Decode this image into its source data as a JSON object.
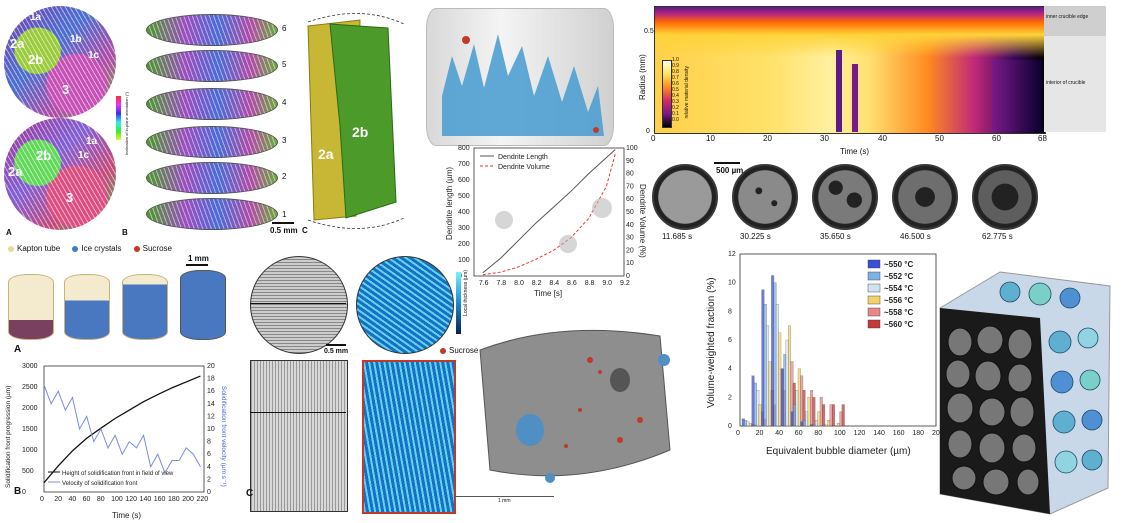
{
  "panel_ebsd": {
    "grain_labels_top": [
      "1a",
      "1b",
      "2a",
      "2b",
      "1c",
      "3"
    ],
    "grain_labels_bottom": [
      "1a",
      "1c",
      "2a",
      "2b",
      "3"
    ],
    "letter_a": "A",
    "letter_b": "B",
    "letter_c": "C",
    "colorbar_label": "Inclination of in-plane orientation (°)",
    "slice_numbers": [
      "6",
      "5",
      "4",
      "3",
      "2",
      "1"
    ],
    "render_labels": [
      "2a",
      "2b"
    ],
    "scalebar": "0.5 mm"
  },
  "panel_kapton": {
    "legend": [
      "Kapton tube",
      "Ice crystals",
      "Sucrose"
    ],
    "legend_colors": [
      "#e8d7a0",
      "#3f7fc4",
      "#c0392b"
    ],
    "scalebar": "1 mm",
    "letter_a": "A",
    "letter_b": "B"
  },
  "chart_solidification": {
    "ylabel_left": "Solidification front progression (µm)",
    "ylabel_right": "Solidification front velocity (µm s⁻¹)",
    "xlabel": "Time (s)",
    "legend": [
      "Height of solidification front in field of view",
      "Velocity of solidification front"
    ],
    "x_ticks": [
      "0",
      "20",
      "40",
      "60",
      "80",
      "100",
      "120",
      "140",
      "160",
      "180",
      "200",
      "220"
    ],
    "y_ticks_left": [
      "0",
      "500",
      "1000",
      "1500",
      "2000",
      "2500",
      "3000"
    ],
    "y_ticks_right": [
      "0",
      "2",
      "4",
      "6",
      "8",
      "10",
      "12",
      "14",
      "16",
      "18",
      "20"
    ]
  },
  "panel_thickness": {
    "colorbar_label": "Local thickness (µm)",
    "scalebar": "0.5 mm",
    "letter_c": "C",
    "sucrose_label": "Sucrose",
    "render_scalebar": "1 mm"
  },
  "chart_dendrite": {
    "ylabel_left": "Dendrite length (µm)",
    "ylabel_right": "Dendrite Volume (%)",
    "xlabel": "Time [s]",
    "legend": [
      "Dendrite Length",
      "Dendrite Volume"
    ],
    "x_ticks": [
      "7.6",
      "7.8",
      "8.0",
      "8.2",
      "8.4",
      "8.6",
      "8.8",
      "9.0",
      "9.2"
    ],
    "y_ticks_left": [
      "0",
      "100",
      "200",
      "300",
      "400",
      "500",
      "600",
      "700",
      "800"
    ],
    "y_ticks_right": [
      "0",
      "10",
      "20",
      "30",
      "40",
      "50",
      "60",
      "70",
      "80",
      "90",
      "100"
    ]
  },
  "chart_heatmap": {
    "ylabel": "Radius (mm)",
    "xlabel": "Time (s)",
    "x_ticks": [
      "0",
      "10",
      "20",
      "30",
      "40",
      "50",
      "60",
      "68"
    ],
    "y_ticks": [
      "0",
      "0.5"
    ],
    "colorbar_label": "relative material density",
    "colorbar_ticks": [
      "1.0",
      "0.9",
      "0.8",
      "0.7",
      "0.6",
      "0.5",
      "0.4",
      "0.3",
      "0.2",
      "0.1",
      "0.0"
    ],
    "side_labels": [
      "inner crucible edge",
      "interior of crucible"
    ]
  },
  "ct_slices": {
    "scalebar": "500 µm",
    "times": [
      "11.685 s",
      "30.225 s",
      "35.650 s",
      "46.500 s",
      "62.775 s"
    ]
  },
  "chart_bubbles": {
    "ylabel": "Volume-weighted fraction (%)",
    "xlabel": "Equivalent bubble diameter (µm)",
    "x_ticks": [
      "0",
      "20",
      "40",
      "60",
      "80",
      "100",
      "120",
      "140",
      "160",
      "180",
      "200"
    ],
    "y_ticks": [
      "0",
      "2",
      "4",
      "6",
      "8",
      "10",
      "12"
    ],
    "legend": [
      "~550 °C",
      "~552 °C",
      "~554 °C",
      "~556 °C",
      "~558 °C",
      "~560 °C"
    ],
    "legend_colors": [
      "#3b4fd6",
      "#7fb0e6",
      "#cfe3f2",
      "#f2d36b",
      "#e58a8a",
      "#c43a3a"
    ]
  },
  "chart_data": [
    {
      "type": "line",
      "title": "",
      "xlabel": "Time (s)",
      "ylabel": "Solidification front progression (µm)",
      "xlim": [
        0,
        225
      ],
      "ylim": [
        0,
        3000
      ],
      "series": [
        {
          "name": "Height of solidification front in field of view",
          "x": [
            0,
            20,
            40,
            60,
            80,
            100,
            120,
            140,
            160,
            180,
            200,
            220
          ],
          "values": [
            220,
            620,
            980,
            1280,
            1520,
            1750,
            1950,
            2150,
            2320,
            2480,
            2620,
            2760
          ]
        },
        {
          "name": "Velocity of solidification front",
          "x": [
            0,
            10,
            20,
            30,
            40,
            50,
            60,
            70,
            80,
            90,
            100,
            110,
            120,
            130,
            140,
            150,
            160,
            170,
            180,
            190,
            200,
            210,
            220
          ],
          "values": [
            17,
            14,
            16,
            13,
            15,
            10,
            12,
            8,
            10,
            7,
            9,
            6,
            8,
            7,
            9,
            4,
            6,
            3,
            5,
            5,
            7,
            6,
            4
          ]
        }
      ]
    },
    {
      "type": "line",
      "title": "",
      "xlabel": "Time [s]",
      "ylabel": "Dendrite length (µm)",
      "xlim": [
        7.5,
        9.2
      ],
      "ylim": [
        0,
        800
      ],
      "series": [
        {
          "name": "Dendrite Length",
          "x": [
            7.6,
            7.8,
            8.0,
            8.2,
            8.4,
            8.6,
            8.8,
            9.0,
            9.1
          ],
          "values": [
            20,
            110,
            220,
            330,
            430,
            530,
            640,
            740,
            790
          ]
        },
        {
          "name": "Dendrite Volume",
          "x": [
            7.6,
            7.8,
            8.0,
            8.2,
            8.4,
            8.6,
            8.8,
            9.0,
            9.1
          ],
          "values": [
            1,
            3,
            7,
            13,
            20,
            30,
            45,
            70,
            95
          ]
        }
      ]
    },
    {
      "type": "bar",
      "title": "",
      "xlabel": "Equivalent bubble diameter (µm)",
      "ylabel": "Volume-weighted fraction (%)",
      "xlim": [
        0,
        200
      ],
      "ylim": [
        0,
        12
      ],
      "categories": [
        "10",
        "20",
        "30",
        "40",
        "50",
        "60",
        "70",
        "80",
        "90",
        "100"
      ],
      "series": [
        {
          "name": "~550 °C",
          "values": [
            0.5,
            3.5,
            9.5,
            10.5,
            4,
            1,
            0.3,
            0.1,
            0,
            0
          ]
        },
        {
          "name": "~552 °C",
          "values": [
            0.4,
            3,
            8.5,
            10,
            5,
            1.5,
            0.4,
            0.1,
            0,
            0
          ]
        },
        {
          "name": "~554 °C",
          "values": [
            0.3,
            2.5,
            7,
            8.5,
            6,
            2.5,
            1,
            0.4,
            0.1,
            0
          ]
        },
        {
          "name": "~556 °C",
          "values": [
            0.2,
            1.5,
            4.5,
            6.5,
            7,
            4,
            2,
            1,
            0.4,
            0.2
          ]
        },
        {
          "name": "~558 °C",
          "values": [
            0.1,
            1,
            2.5,
            4,
            4.5,
            3.5,
            2.5,
            2,
            1.5,
            1
          ]
        },
        {
          "name": "~560 °C",
          "values": [
            0.1,
            0.5,
            1.5,
            2.5,
            3,
            2.5,
            2,
            1.5,
            1.5,
            1.5
          ]
        }
      ]
    },
    {
      "type": "heatmap",
      "title": "",
      "xlabel": "Time (s)",
      "ylabel": "Radius (mm)",
      "xlim": [
        0,
        68
      ],
      "ylim": [
        0,
        0.6
      ],
      "colorbar": {
        "label": "relative material density",
        "range": [
          0.0,
          1.0
        ]
      }
    }
  ]
}
